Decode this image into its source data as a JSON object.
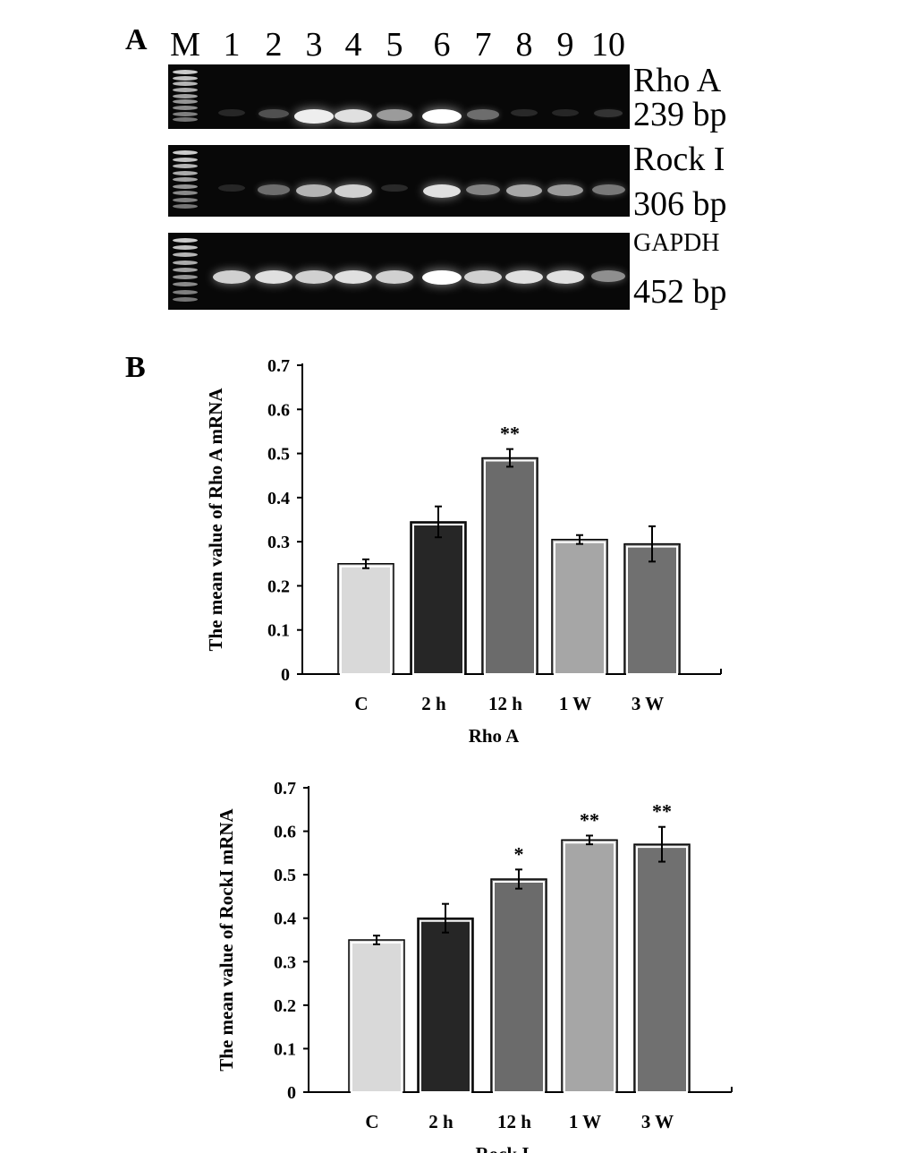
{
  "panel_a": {
    "letter": "A",
    "lanes": [
      "M",
      "1",
      "2",
      "3",
      "4",
      "5",
      "6",
      "7",
      "8",
      "9",
      "10"
    ],
    "gels": [
      {
        "name": "Rho A",
        "size": "239 bp",
        "intensities": [
          0,
          0.03,
          0.3,
          0.95,
          0.9,
          0.65,
          1.0,
          0.45,
          0.05,
          0.02,
          0.12
        ]
      },
      {
        "name": "Rock I",
        "size": "306 bp",
        "intensities": [
          0,
          0.02,
          0.45,
          0.75,
          0.85,
          0.05,
          0.9,
          0.55,
          0.7,
          0.65,
          0.5
        ]
      },
      {
        "name": "GAPDH",
        "size": "452 bp",
        "intensities": [
          0,
          0.85,
          0.9,
          0.85,
          0.9,
          0.85,
          1.0,
          0.85,
          0.9,
          0.9,
          0.6
        ]
      }
    ]
  },
  "panel_b": {
    "letter": "B"
  },
  "colors": {
    "C": "#d9d9d9",
    "2 h": "#262626",
    "12 h": "#6b6b6b",
    "1 W": "#a6a6a6",
    "3 W": "#707070"
  },
  "chart_data": [
    {
      "type": "bar",
      "categories": [
        "C",
        "2 h",
        "12 h",
        "1 W",
        "3 W"
      ],
      "values": [
        0.25,
        0.345,
        0.49,
        0.305,
        0.295
      ],
      "errors": [
        0.01,
        0.035,
        0.02,
        0.01,
        0.04
      ],
      "annotations": [
        "",
        "",
        "**",
        "",
        ""
      ],
      "xlabel": "Rho A",
      "ylabel": "The mean value of Rho A mRNA",
      "ylim": [
        0,
        0.7
      ],
      "yticks": [
        "0",
        "0.1",
        "0.2",
        "0.3",
        "0.4",
        "0.5",
        "0.6",
        "0.7"
      ],
      "grid": false
    },
    {
      "type": "bar",
      "categories": [
        "C",
        "2 h",
        "12 h",
        "1 W",
        "3 W"
      ],
      "values": [
        0.35,
        0.4,
        0.49,
        0.58,
        0.57
      ],
      "errors": [
        0.01,
        0.033,
        0.022,
        0.01,
        0.04
      ],
      "annotations": [
        "",
        "",
        "*",
        "**",
        "**"
      ],
      "xlabel": "Rock I",
      "ylabel": "The mean value of RockI mRNA",
      "ylim": [
        0,
        0.7
      ],
      "yticks": [
        "0",
        "0.1",
        "0.2",
        "0.3",
        "0.4",
        "0.5",
        "0.6",
        "0.7"
      ],
      "grid": false
    }
  ]
}
